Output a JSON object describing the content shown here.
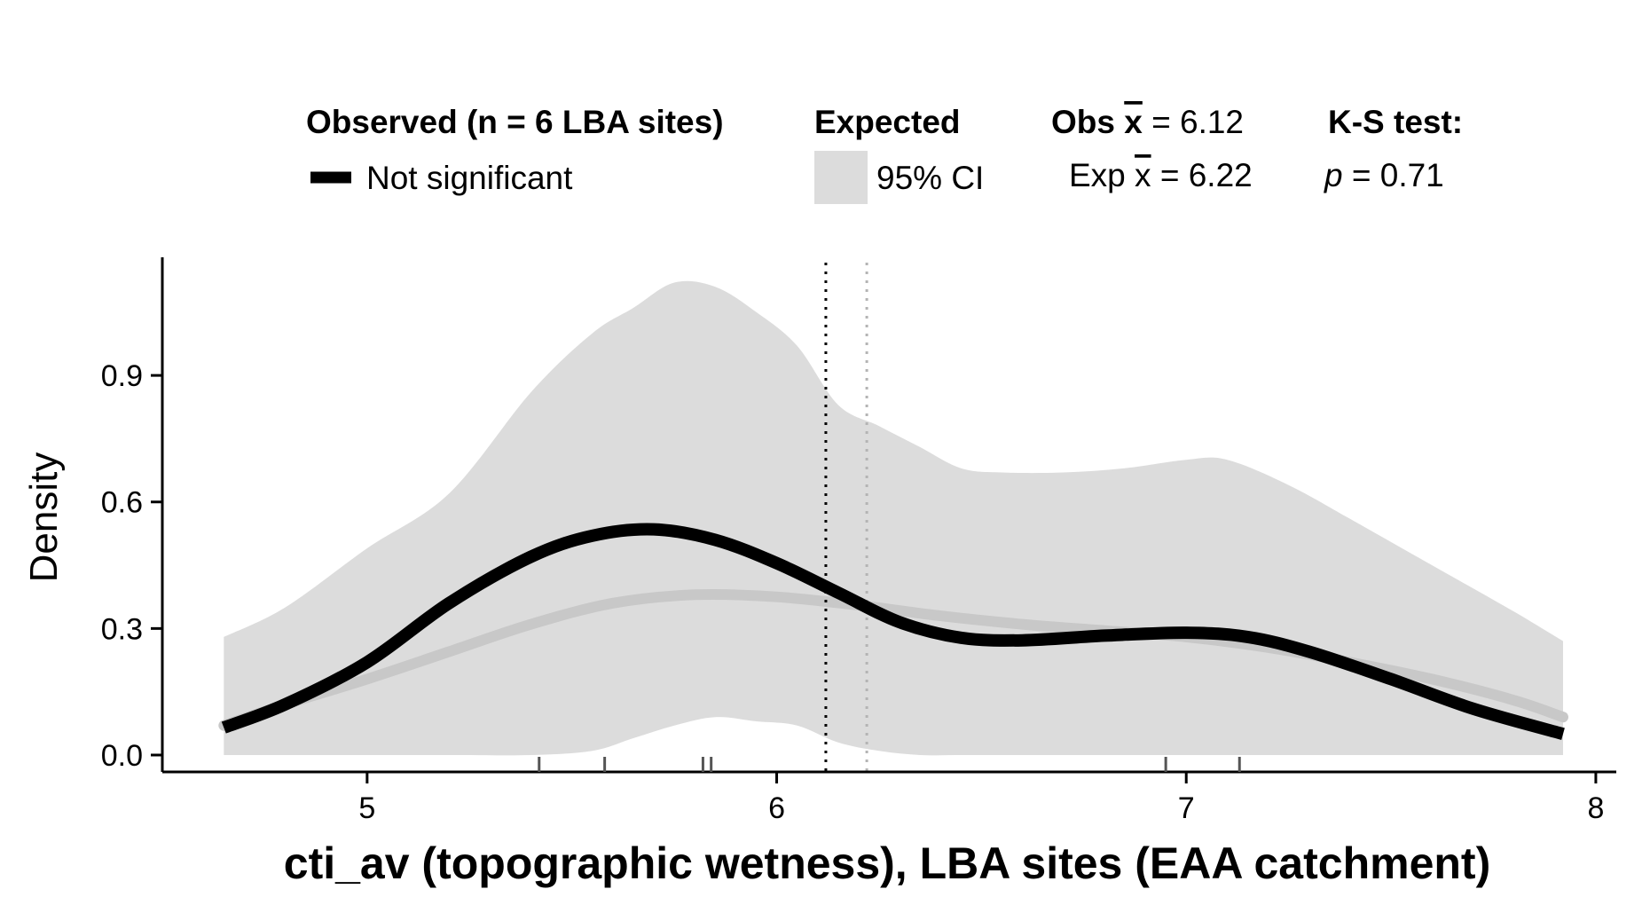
{
  "legend": {
    "observed_title": "Observed (n = 6 LBA sites)",
    "observed_entry": "Not significant",
    "expected_title": "Expected",
    "expected_entry": "95% CI",
    "obs_mean_prefix": "Obs",
    "obs_mean_value": " = 6.12",
    "exp_mean_prefix": "Exp",
    "exp_mean_value": " = 6.22",
    "xbar_symbol": "x",
    "ks_title": "K-S test:",
    "ks_p_symbol": "p",
    "ks_p_value": " = 0.71"
  },
  "chart_data": {
    "type": "line",
    "xlabel": "cti_av (topographic wetness), LBA sites (EAA catchment)",
    "ylabel": "Density",
    "xlim": [
      4.5,
      8.05
    ],
    "ylim": [
      -0.04,
      1.18
    ],
    "xticks": [
      5,
      6,
      7,
      8
    ],
    "yticks": [
      0.0,
      0.3,
      0.6,
      0.9
    ],
    "ytick_labels": [
      "0.0",
      "0.3",
      "0.6",
      "0.9"
    ],
    "grid": false,
    "legend_position": "top",
    "colors": {
      "observed": "#000000",
      "expected": "#c8c8c8",
      "ci_band": "#dcdcdc",
      "obs_mean_line": "#000000",
      "exp_mean_line": "#b4b4b4"
    },
    "ci_band": {
      "x": [
        4.65,
        4.8,
        5.0,
        5.2,
        5.4,
        5.55,
        5.65,
        5.75,
        5.85,
        5.95,
        6.05,
        6.15,
        6.25,
        6.35,
        6.45,
        6.55,
        6.7,
        6.85,
        7.0,
        7.1,
        7.25,
        7.4,
        7.6,
        7.8,
        7.92
      ],
      "upper": [
        0.28,
        0.35,
        0.49,
        0.62,
        0.86,
        1.0,
        1.06,
        1.12,
        1.11,
        1.05,
        0.97,
        0.83,
        0.78,
        0.73,
        0.68,
        0.67,
        0.67,
        0.68,
        0.7,
        0.7,
        0.64,
        0.56,
        0.45,
        0.34,
        0.27
      ],
      "lower": [
        0.0,
        0.0,
        0.0,
        0.0,
        0.0,
        0.01,
        0.04,
        0.07,
        0.09,
        0.08,
        0.07,
        0.03,
        0.01,
        0.0,
        0.0,
        0.0,
        0.0,
        0.0,
        0.0,
        0.0,
        0.0,
        0.0,
        0.0,
        0.0,
        0.0
      ]
    },
    "series": [
      {
        "name": "Not significant",
        "x": [
          4.65,
          4.8,
          5.0,
          5.2,
          5.4,
          5.55,
          5.7,
          5.85,
          6.0,
          6.15,
          6.3,
          6.45,
          6.6,
          6.8,
          7.0,
          7.15,
          7.3,
          7.5,
          7.7,
          7.92
        ],
        "y": [
          0.065,
          0.12,
          0.22,
          0.36,
          0.47,
          0.52,
          0.535,
          0.51,
          0.455,
          0.385,
          0.315,
          0.278,
          0.272,
          0.283,
          0.29,
          0.28,
          0.245,
          0.18,
          0.11,
          0.05
        ]
      },
      {
        "name": "Expected",
        "x": [
          4.65,
          4.8,
          5.0,
          5.2,
          5.4,
          5.6,
          5.8,
          6.0,
          6.2,
          6.4,
          6.6,
          6.8,
          7.0,
          7.2,
          7.4,
          7.6,
          7.8,
          7.92
        ],
        "y": [
          0.07,
          0.12,
          0.18,
          0.245,
          0.31,
          0.36,
          0.38,
          0.375,
          0.355,
          0.33,
          0.31,
          0.295,
          0.28,
          0.255,
          0.22,
          0.18,
          0.13,
          0.09
        ]
      }
    ],
    "obs_mean": 6.12,
    "exp_mean": 6.22,
    "rug": [
      5.42,
      5.58,
      5.82,
      5.84,
      6.95,
      7.13
    ]
  }
}
